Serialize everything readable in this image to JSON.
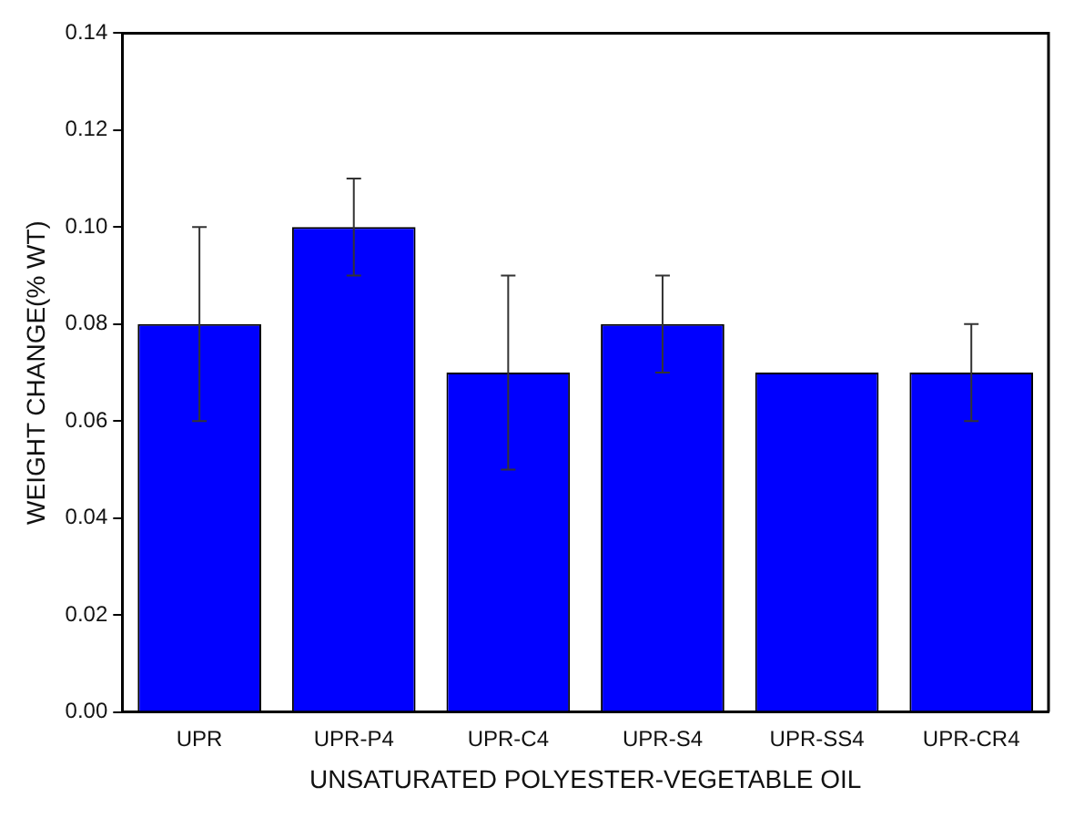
{
  "chart_data": {
    "type": "bar",
    "xlabel": "UNSATURATED POLYESTER-VEGETABLE OIL",
    "ylabel": "WEIGHT CHANGE(% WT)",
    "categories": [
      "UPR",
      "UPR-P4",
      "UPR-C4",
      "UPR-S4",
      "UPR-SS4",
      "UPR-CR4"
    ],
    "values": [
      0.08,
      0.1,
      0.07,
      0.08,
      0.07,
      0.07
    ],
    "errors": [
      0.02,
      0.01,
      0.02,
      0.01,
      null,
      0.01
    ],
    "color": "#0000ff",
    "ylim": [
      0,
      0.14
    ],
    "yticks": [
      {
        "value": 0,
        "label": "0.00"
      },
      {
        "value": 0.02,
        "label": "0.02"
      },
      {
        "value": 0.04,
        "label": "0.04"
      },
      {
        "value": 0.06,
        "label": "0.06"
      },
      {
        "value": 0.08,
        "label": "0.08"
      },
      {
        "value": 0.1,
        "label": "0.10"
      },
      {
        "value": 0.12,
        "label": "0.12"
      },
      {
        "value": 0.14,
        "label": "0.14"
      }
    ],
    "grid": false,
    "legend": false
  }
}
